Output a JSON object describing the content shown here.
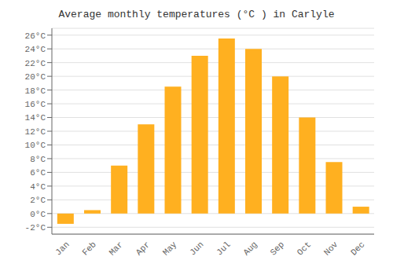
{
  "chart_data": {
    "type": "bar",
    "title": "Average monthly temperatures (°C ) in Carlyle",
    "categories": [
      "Jan",
      "Feb",
      "Mar",
      "Apr",
      "May",
      "Jun",
      "Jul",
      "Aug",
      "Sep",
      "Oct",
      "Nov",
      "Dec"
    ],
    "values": [
      -1.5,
      0.5,
      7.0,
      13.0,
      18.5,
      23.0,
      25.5,
      24.0,
      20.0,
      14.0,
      7.5,
      1.0
    ],
    "color": "#FFB020",
    "ylim": [
      -3,
      27
    ],
    "yticks": [
      {
        "value": -2,
        "label": "-2°C"
      },
      {
        "value": 0,
        "label": "0°C"
      },
      {
        "value": 2,
        "label": "2°C"
      },
      {
        "value": 4,
        "label": "4°C"
      },
      {
        "value": 6,
        "label": "6°C"
      },
      {
        "value": 8,
        "label": "8°C"
      },
      {
        "value": 10,
        "label": "10°C"
      },
      {
        "value": 12,
        "label": "12°C"
      },
      {
        "value": 14,
        "label": "14°C"
      },
      {
        "value": 16,
        "label": "16°C"
      },
      {
        "value": 18,
        "label": "18°C"
      },
      {
        "value": 20,
        "label": "20°C"
      },
      {
        "value": 22,
        "label": "22°C"
      },
      {
        "value": 24,
        "label": "24°C"
      },
      {
        "value": 26,
        "label": "26°C"
      }
    ],
    "grid": true
  }
}
